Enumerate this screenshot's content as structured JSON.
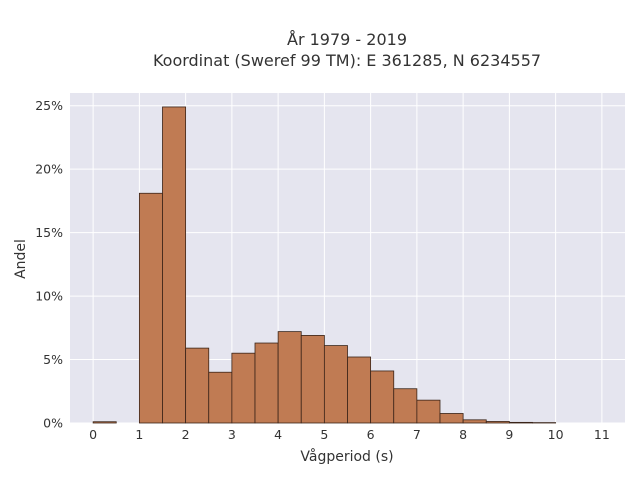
{
  "chart_data": {
    "type": "bar",
    "title_line1": "År 1979 - 2019",
    "title_line2": "Koordinat (Sweref 99 TM): E 361285, N 6234557",
    "xlabel": "Vågperiod (s)",
    "ylabel": "Andel",
    "bin_width": 0.5,
    "bins": [
      {
        "start": 0.0,
        "value": 0.1
      },
      {
        "start": 0.5,
        "value": 0.0
      },
      {
        "start": 1.0,
        "value": 18.1
      },
      {
        "start": 1.5,
        "value": 24.9
      },
      {
        "start": 2.0,
        "value": 5.9
      },
      {
        "start": 2.5,
        "value": 4.0
      },
      {
        "start": 3.0,
        "value": 5.5
      },
      {
        "start": 3.5,
        "value": 6.3
      },
      {
        "start": 4.0,
        "value": 7.2
      },
      {
        "start": 4.5,
        "value": 6.9
      },
      {
        "start": 5.0,
        "value": 6.1
      },
      {
        "start": 5.5,
        "value": 5.2
      },
      {
        "start": 6.0,
        "value": 4.1
      },
      {
        "start": 6.5,
        "value": 2.7
      },
      {
        "start": 7.0,
        "value": 1.8
      },
      {
        "start": 7.5,
        "value": 0.75
      },
      {
        "start": 8.0,
        "value": 0.25
      },
      {
        "start": 8.5,
        "value": 0.12
      },
      {
        "start": 9.0,
        "value": 0.05
      },
      {
        "start": 9.5,
        "value": 0.03
      },
      {
        "start": 10.0,
        "value": 0.0
      },
      {
        "start": 10.5,
        "value": 0.0
      }
    ],
    "x_ticks": [
      0,
      1,
      2,
      3,
      4,
      5,
      6,
      7,
      8,
      9,
      10,
      11
    ],
    "y_ticks": [
      0,
      5,
      10,
      15,
      20,
      25
    ],
    "y_tick_labels": [
      "0%",
      "5%",
      "10%",
      "15%",
      "20%",
      "25%"
    ],
    "xlim": [
      -0.5,
      11.5
    ],
    "ylim": [
      0,
      26
    ],
    "grid": true,
    "legend": "none",
    "colors": {
      "bar_fill": "#c07b53",
      "bar_edge": "#3a2418",
      "plot_bg": "#e5e5ef",
      "grid": "#ffffff"
    }
  }
}
